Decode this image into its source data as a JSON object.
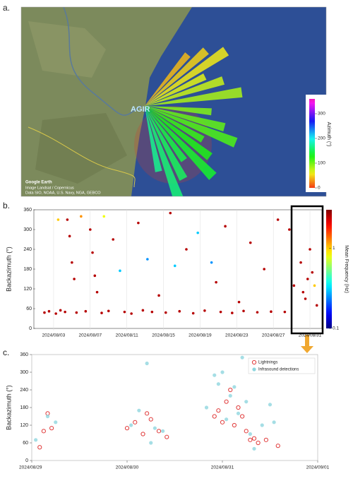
{
  "chart_data": [
    {
      "type": "map",
      "panel_label": "a.",
      "site_label": "AGIR",
      "credits": [
        "Google Earth",
        "Image Landsat / Copernicus",
        "Data SIO, NOAA, U.S. Navy, NGA, GEBCO"
      ],
      "colorbar_label": "Azimuth (°)",
      "clim": [
        0,
        360
      ],
      "cticks": [
        0,
        100,
        200,
        300
      ],
      "azimuths": [
        40,
        48,
        56,
        64,
        72,
        82,
        95,
        105,
        112,
        120,
        128,
        136,
        144,
        152,
        160,
        168
      ]
    },
    {
      "type": "scatter",
      "panel_label": "b.",
      "ylabel": "Backazimuth (°)",
      "colorbar_label": "Mean Frequency (Hz)",
      "clim": [
        0.1,
        3
      ],
      "cticks": [
        0.1,
        1
      ],
      "color_scale": "log",
      "xlim": [
        "2024/08/01",
        "2024/09/01"
      ],
      "xticks": [
        "2024/08/03",
        "2024/08/07",
        "2024/08/11",
        "2024/08/15",
        "2024/08/19",
        "2024/08/23",
        "2024/08/27",
        "2024/08/31"
      ],
      "ylim": [
        0,
        360
      ],
      "yticks": [
        0,
        60,
        120,
        180,
        240,
        300,
        360
      ],
      "x": [
        "2024/08/02 00:00",
        "2024/08/02 12:00",
        "2024/08/03 06:00",
        "2024/08/03 18:00",
        "2024/08/04 06:00",
        "2024/08/04 12:00",
        "2024/08/04 18:00",
        "2024/08/05 00:00",
        "2024/08/05 06:00",
        "2024/08/05 12:00",
        "2024/08/06 00:00",
        "2024/08/06 12:00",
        "2024/08/07 00:00",
        "2024/08/07 06:00",
        "2024/08/07 12:00",
        "2024/08/07 18:00",
        "2024/08/08 06:00",
        "2024/08/09 00:00",
        "2024/08/09 12:00",
        "2024/08/10 06:00",
        "2024/08/10 18:00",
        "2024/08/11 12:00",
        "2024/08/12 06:00",
        "2024/08/12 18:00",
        "2024/08/13 06:00",
        "2024/08/13 18:00",
        "2024/08/14 12:00",
        "2024/08/15 06:00",
        "2024/08/15 18:00",
        "2024/08/16 06:00",
        "2024/08/16 18:00",
        "2024/08/17 12:00",
        "2024/08/18 06:00",
        "2024/08/18 18:00",
        "2024/08/19 12:00",
        "2024/08/20 06:00",
        "2024/08/20 18:00",
        "2024/08/21 06:00",
        "2024/08/21 18:00",
        "2024/08/22 12:00",
        "2024/08/23 06:00",
        "2024/08/23 18:00",
        "2024/08/24 12:00",
        "2024/08/25 06:00",
        "2024/08/26 00:00",
        "2024/08/26 18:00",
        "2024/08/27 12:00",
        "2024/08/28 06:00",
        "2024/08/28 18:00",
        "2024/08/29 06:00",
        "2024/08/30 00:00",
        "2024/08/30 06:00",
        "2024/08/30 12:00",
        "2024/08/30 18:00",
        "2024/08/31 00:00",
        "2024/08/31 06:00",
        "2024/08/31 12:00",
        "2024/08/31 18:00",
        "2024/08/08 12:00",
        "2024/08/03 12:00"
      ],
      "values": [
        48,
        52,
        45,
        55,
        50,
        330,
        280,
        200,
        150,
        48,
        340,
        52,
        300,
        230,
        160,
        110,
        47,
        53,
        270,
        175,
        50,
        45,
        320,
        55,
        210,
        50,
        100,
        48,
        350,
        190,
        52,
        240,
        46,
        290,
        54,
        200,
        140,
        50,
        310,
        47,
        80,
        53,
        260,
        49,
        180,
        51,
        330,
        50,
        300,
        130,
        200,
        110,
        90,
        150,
        240,
        170,
        130,
        70,
        340,
        330
      ],
      "frequency": [
        2.5,
        2.5,
        2.5,
        2.5,
        2.5,
        2.5,
        2.5,
        2.5,
        2.5,
        2.5,
        1.2,
        2.5,
        2.5,
        2.5,
        2.5,
        2.5,
        2.5,
        2.5,
        2.5,
        0.3,
        2.5,
        2.5,
        2.5,
        2.5,
        0.25,
        2.5,
        2.5,
        2.5,
        2.5,
        0.3,
        2.5,
        2.5,
        2.5,
        0.3,
        2.5,
        0.25,
        2.5,
        2.5,
        2.5,
        2.5,
        2.5,
        2.5,
        2.5,
        2.5,
        2.5,
        2.5,
        2.5,
        2.5,
        2.5,
        2.5,
        2.5,
        2.5,
        2.5,
        2.5,
        2.5,
        2.5,
        1.0,
        2.5,
        0.8,
        1.0
      ]
    },
    {
      "type": "scatter",
      "panel_label": "c.",
      "ylabel": "Backazimuth (°)",
      "xlim": [
        "2024/08/29",
        "2024/09/01"
      ],
      "xticks": [
        "2024/08/29",
        "2024/08/30",
        "2024/08/31",
        "2024/09/01"
      ],
      "ylim": [
        0,
        360
      ],
      "yticks": [
        0,
        60,
        120,
        180,
        240,
        300,
        360
      ],
      "legend": "upper right",
      "series": [
        {
          "name": "Lightnings",
          "color": "#e03a3a",
          "marker": "open",
          "x": [
            "2024/08/29 02:00",
            "2024/08/29 03:00",
            "2024/08/29 04:00",
            "2024/08/29 05:00",
            "2024/08/30 00:00",
            "2024/08/30 02:00",
            "2024/08/30 04:00",
            "2024/08/30 05:00",
            "2024/08/30 06:00",
            "2024/08/30 08:00",
            "2024/08/30 10:00",
            "2024/08/30 22:00",
            "2024/08/30 23:00",
            "2024/08/31 00:00",
            "2024/08/31 01:00",
            "2024/08/31 02:00",
            "2024/08/31 03:00",
            "2024/08/31 04:00",
            "2024/08/31 05:00",
            "2024/08/31 06:00",
            "2024/08/31 07:00",
            "2024/08/31 08:00",
            "2024/08/31 09:00",
            "2024/08/31 11:00",
            "2024/08/31 14:00"
          ],
          "values": [
            45,
            100,
            160,
            110,
            110,
            130,
            90,
            160,
            140,
            100,
            80,
            150,
            170,
            130,
            200,
            240,
            120,
            180,
            150,
            100,
            70,
            75,
            60,
            70,
            50
          ]
        },
        {
          "name": "Infrasound detections",
          "color": "#8ed6de",
          "marker": "filled",
          "x": [
            "2024/08/29 01:00",
            "2024/08/29 04:00",
            "2024/08/29 06:00",
            "2024/08/30 01:00",
            "2024/08/30 03:00",
            "2024/08/30 05:00",
            "2024/08/30 06:00",
            "2024/08/30 07:00",
            "2024/08/30 09:00",
            "2024/08/30 20:00",
            "2024/08/30 22:00",
            "2024/08/30 23:00",
            "2024/08/31 00:00",
            "2024/08/31 01:00",
            "2024/08/31 02:00",
            "2024/08/31 03:00",
            "2024/08/31 04:00",
            "2024/08/31 05:00",
            "2024/08/31 06:00",
            "2024/08/31 07:00",
            "2024/08/31 08:00",
            "2024/08/31 10:00",
            "2024/08/31 12:00",
            "2024/08/31 13:00"
          ],
          "values": [
            70,
            150,
            130,
            120,
            170,
            330,
            60,
            110,
            100,
            180,
            290,
            260,
            300,
            140,
            220,
            250,
            160,
            350,
            200,
            90,
            40,
            120,
            190,
            130
          ]
        }
      ]
    }
  ]
}
